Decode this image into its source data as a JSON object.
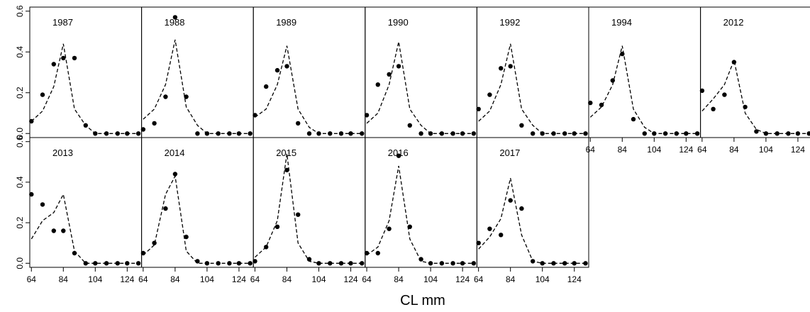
{
  "figure": {
    "xlabel": "CL mm"
  },
  "chart_data": {
    "type": "scatter",
    "description_series": [
      "observed",
      "fitted"
    ],
    "x": [
      64,
      71,
      78,
      84,
      91,
      98,
      104,
      111,
      118,
      124,
      131
    ],
    "x_ticks": [
      "64",
      "84",
      "104",
      "124"
    ],
    "y_ticks": [
      "0.0",
      "0.2",
      "0.4",
      "0.6"
    ],
    "xlim": [
      63,
      133
    ],
    "ylim": [
      -0.02,
      0.62
    ],
    "layout_rows": [
      7,
      5
    ],
    "panels": [
      {
        "year": "1987",
        "observed": [
          0.06,
          0.19,
          0.34,
          0.37,
          0.37,
          0.04,
          0.0,
          0.0,
          0.0,
          0.0,
          0.0
        ],
        "fitted": [
          0.06,
          0.11,
          0.23,
          0.44,
          0.12,
          0.04,
          0.0,
          0.0,
          0.0,
          0.0,
          0.0
        ]
      },
      {
        "year": "1988",
        "observed": [
          0.02,
          0.05,
          0.18,
          0.57,
          0.18,
          0.0,
          0.0,
          0.0,
          0.0,
          0.0,
          0.0
        ],
        "fitted": [
          0.07,
          0.12,
          0.24,
          0.46,
          0.13,
          0.04,
          0.0,
          0.0,
          0.0,
          0.0,
          0.0
        ]
      },
      {
        "year": "1989",
        "observed": [
          0.09,
          0.23,
          0.31,
          0.33,
          0.05,
          0.0,
          0.0,
          0.0,
          0.0,
          0.0,
          0.0
        ],
        "fitted": [
          0.08,
          0.12,
          0.24,
          0.43,
          0.12,
          0.03,
          0.0,
          0.0,
          0.0,
          0.0,
          0.0
        ]
      },
      {
        "year": "1990",
        "observed": [
          0.09,
          0.24,
          0.29,
          0.33,
          0.04,
          0.0,
          0.0,
          0.0,
          0.0,
          0.0,
          0.0
        ],
        "fitted": [
          0.05,
          0.1,
          0.24,
          0.45,
          0.12,
          0.04,
          0.0,
          0.0,
          0.0,
          0.0,
          0.0
        ]
      },
      {
        "year": "1992",
        "observed": [
          0.12,
          0.19,
          0.32,
          0.33,
          0.04,
          0.0,
          0.0,
          0.0,
          0.0,
          0.0,
          0.0
        ],
        "fitted": [
          0.06,
          0.11,
          0.24,
          0.44,
          0.12,
          0.04,
          0.0,
          0.0,
          0.0,
          0.0,
          0.0
        ]
      },
      {
        "year": "1994",
        "observed": [
          0.15,
          0.14,
          0.26,
          0.39,
          0.07,
          0.0,
          0.0,
          0.0,
          0.0,
          0.0,
          0.0
        ],
        "fitted": [
          0.08,
          0.13,
          0.24,
          0.43,
          0.12,
          0.03,
          0.0,
          0.0,
          0.0,
          0.0,
          0.0
        ]
      },
      {
        "year": "2012",
        "observed": [
          0.21,
          0.12,
          0.19,
          0.35,
          0.13,
          0.01,
          0.0,
          0.0,
          0.0,
          0.0,
          0.0
        ],
        "fitted": [
          0.11,
          0.17,
          0.24,
          0.36,
          0.1,
          0.02,
          0.0,
          0.0,
          0.0,
          0.0,
          0.0
        ]
      },
      {
        "year": "2013",
        "observed": [
          0.34,
          0.29,
          0.16,
          0.16,
          0.05,
          0.0,
          0.0,
          0.0,
          0.0,
          0.0,
          0.0
        ],
        "fitted": [
          0.12,
          0.21,
          0.25,
          0.34,
          0.06,
          0.0,
          0.0,
          0.0,
          0.0,
          0.0,
          0.0
        ]
      },
      {
        "year": "2014",
        "observed": [
          0.05,
          0.1,
          0.27,
          0.44,
          0.13,
          0.01,
          0.0,
          0.0,
          0.0,
          0.0,
          0.0
        ],
        "fitted": [
          0.04,
          0.09,
          0.34,
          0.43,
          0.06,
          0.0,
          0.0,
          0.0,
          0.0,
          0.0,
          0.0
        ]
      },
      {
        "year": "2015",
        "observed": [
          0.01,
          0.08,
          0.18,
          0.46,
          0.24,
          0.02,
          0.0,
          0.0,
          0.0,
          0.0,
          0.0
        ],
        "fitted": [
          0.03,
          0.08,
          0.21,
          0.54,
          0.1,
          0.01,
          0.0,
          0.0,
          0.0,
          0.0,
          0.0
        ]
      },
      {
        "year": "2016",
        "observed": [
          0.05,
          0.05,
          0.17,
          0.53,
          0.18,
          0.02,
          0.0,
          0.0,
          0.0,
          0.0,
          0.0
        ],
        "fitted": [
          0.04,
          0.08,
          0.21,
          0.48,
          0.12,
          0.01,
          0.0,
          0.0,
          0.0,
          0.0,
          0.0
        ]
      },
      {
        "year": "2017",
        "observed": [
          0.1,
          0.17,
          0.14,
          0.31,
          0.27,
          0.01,
          0.0,
          0.0,
          0.0,
          0.0,
          0.0
        ],
        "fitted": [
          0.07,
          0.13,
          0.22,
          0.42,
          0.14,
          0.01,
          0.0,
          0.0,
          0.0,
          0.0,
          0.0
        ]
      }
    ]
  }
}
